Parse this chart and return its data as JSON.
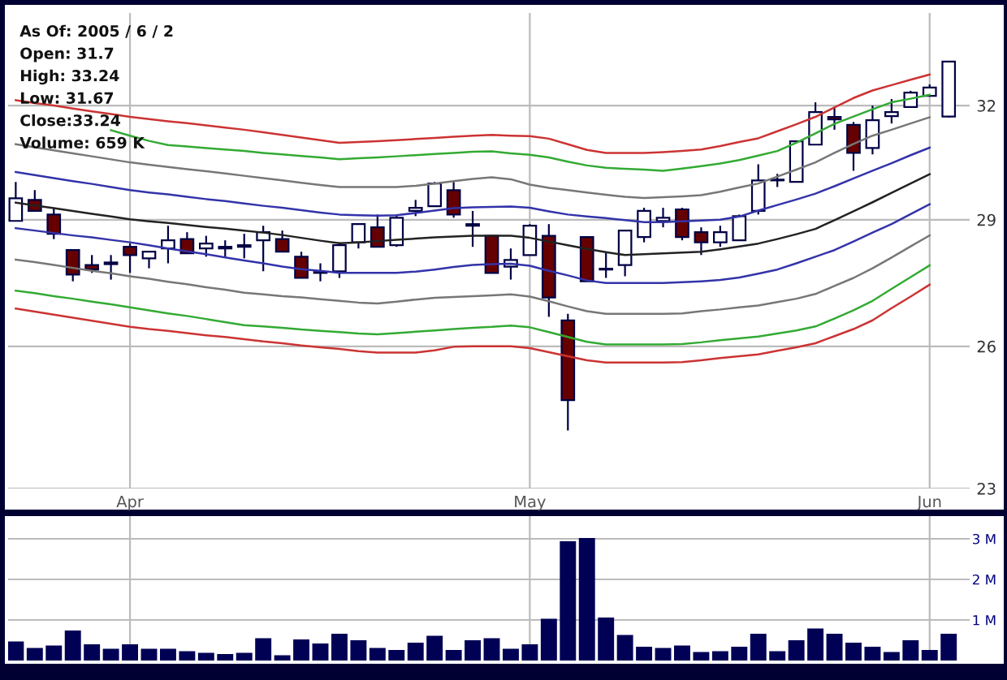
{
  "chart_data": [
    {
      "type": "candlestick",
      "log": "y",
      "grid": true,
      "annotations": [
        "As Of: 2005 / 6 / 2",
        "Open: 31.7",
        "High: 33.24",
        "Low: 31.67",
        "Close:33.24",
        "Volume: 659 K"
      ],
      "categories": [
        null,
        null,
        null,
        null,
        null,
        null,
        "Apr",
        null,
        null,
        null,
        null,
        null,
        null,
        null,
        null,
        null,
        null,
        null,
        null,
        null,
        null,
        null,
        null,
        null,
        null,
        null,
        null,
        "May",
        null,
        null,
        null,
        null,
        null,
        null,
        null,
        null,
        null,
        null,
        null,
        null,
        null,
        null,
        null,
        null,
        null,
        null,
        null,
        null,
        "Jun",
        null
      ],
      "ohlc": [
        [
          28.97,
          29.96,
          28.97,
          29.54
        ],
        [
          29.5,
          29.75,
          29.22,
          29.22
        ],
        [
          29.13,
          29.3,
          28.52,
          28.65
        ],
        [
          28.25,
          28.25,
          27.5,
          27.66
        ],
        [
          27.89,
          28.13,
          27.7,
          27.78
        ],
        [
          27.91,
          28.13,
          27.54,
          27.95
        ],
        [
          28.33,
          28.41,
          27.7,
          28.13
        ],
        [
          28.05,
          28.21,
          27.81,
          28.21
        ],
        [
          28.29,
          28.85,
          27.93,
          28.49
        ],
        [
          28.52,
          28.69,
          28.17,
          28.17
        ],
        [
          28.29,
          28.6,
          28.09,
          28.41
        ],
        [
          28.33,
          28.49,
          28.09,
          28.29
        ],
        [
          28.37,
          28.65,
          28.05,
          28.33
        ],
        [
          28.49,
          28.85,
          27.74,
          28.69
        ],
        [
          28.52,
          28.73,
          28.21,
          28.21
        ],
        [
          28.09,
          28.21,
          27.58,
          27.58
        ],
        [
          27.72,
          27.93,
          27.5,
          27.7
        ],
        [
          27.74,
          28.44,
          27.58,
          28.37
        ],
        [
          28.44,
          28.89,
          28.29,
          28.89
        ],
        [
          28.81,
          29.13,
          28.33,
          28.33
        ],
        [
          28.37,
          29.13,
          28.33,
          29.05
        ],
        [
          29.22,
          29.5,
          29.09,
          29.3
        ],
        [
          29.34,
          29.96,
          29.34,
          29.92
        ],
        [
          29.75,
          29.96,
          29.05,
          29.13
        ],
        [
          28.89,
          29.22,
          28.33,
          28.85
        ],
        [
          28.6,
          28.6,
          27.7,
          27.7
        ],
        [
          27.85,
          28.29,
          27.54,
          28.01
        ],
        [
          28.13,
          28.89,
          28.13,
          28.85
        ],
        [
          28.6,
          28.89,
          26.67,
          27.12
        ],
        [
          26.59,
          26.74,
          24.18,
          24.82
        ],
        [
          28.57,
          28.57,
          27.5,
          27.5
        ],
        [
          27.79,
          28.21,
          27.58,
          27.78
        ],
        [
          27.89,
          28.73,
          27.62,
          28.73
        ],
        [
          28.57,
          29.3,
          28.44,
          29.22
        ],
        [
          28.97,
          29.3,
          28.81,
          29.05
        ],
        [
          29.26,
          29.3,
          28.49,
          28.57
        ],
        [
          28.69,
          28.81,
          28.13,
          28.44
        ],
        [
          28.44,
          28.85,
          28.33,
          28.69
        ],
        [
          28.49,
          29.13,
          28.49,
          29.09
        ],
        [
          29.22,
          30.42,
          29.13,
          30.0
        ],
        [
          30.02,
          30.17,
          29.83,
          30.0
        ],
        [
          29.96,
          31.03,
          29.96,
          31.03
        ],
        [
          30.94,
          32.09,
          30.94,
          31.82
        ],
        [
          31.69,
          31.96,
          31.34,
          31.62
        ],
        [
          31.47,
          31.55,
          30.25,
          30.72
        ],
        [
          30.85,
          32.0,
          30.68,
          31.6
        ],
        [
          31.71,
          32.18,
          31.51,
          31.82
        ],
        [
          31.96,
          32.41,
          31.96,
          32.36
        ],
        [
          32.27,
          32.59,
          32.27,
          32.5
        ],
        [
          31.7,
          33.24,
          31.67,
          33.24
        ]
      ],
      "colors": [
        "#ffffff",
        "#660000",
        "#660000",
        "#660000",
        "#660000",
        "#ffffff",
        "#660000",
        "#ffffff",
        "#ffffff",
        "#660000",
        "#ffffff",
        "#660000",
        "#660000",
        "#ffffff",
        "#660000",
        "#660000",
        "#660000",
        "#ffffff",
        "#ffffff",
        "#660000",
        "#ffffff",
        "#ffffff",
        "#ffffff",
        "#660000",
        "#660000",
        "#660000",
        "#ffffff",
        "#ffffff",
        "#660000",
        "#660000",
        "#660000",
        "#660000",
        "#ffffff",
        "#ffffff",
        "#ffffff",
        "#660000",
        "#660000",
        "#ffffff",
        "#ffffff",
        "#ffffff",
        "#660000",
        "#ffffff",
        "#ffffff",
        "#660000",
        "#660000",
        "#ffffff",
        "#ffffff",
        "#ffffff",
        "#ffffff",
        "#ffffff"
      ],
      "series": [
        {
          "type": "line",
          "color": "#cc3333",
          "values": [
            32.15,
            32.07,
            32.0,
            31.92,
            31.84,
            31.77,
            31.69,
            31.63,
            31.57,
            31.52,
            31.46,
            31.4,
            31.34,
            31.27,
            31.2,
            31.13,
            31.06,
            30.99,
            31.01,
            31.03,
            31.06,
            31.09,
            31.12,
            31.15,
            31.18,
            31.2,
            31.18,
            31.17,
            31.1,
            30.95,
            30.8,
            30.72,
            30.72,
            30.72,
            30.74,
            30.77,
            30.81,
            30.9,
            31.01,
            31.11,
            31.3,
            31.49,
            31.69,
            31.95,
            32.21,
            32.42,
            32.57,
            32.72,
            32.87,
            null
          ]
        },
        {
          "type": "line",
          "color": "#33aa33",
          "values": [
            null,
            null,
            null,
            null,
            null,
            31.33,
            31.18,
            31.04,
            30.93,
            30.89,
            30.85,
            30.81,
            30.77,
            30.72,
            30.68,
            30.64,
            30.6,
            30.55,
            30.58,
            30.6,
            30.63,
            30.66,
            30.69,
            30.72,
            30.75,
            30.76,
            30.71,
            30.67,
            30.6,
            30.49,
            30.39,
            30.33,
            30.3,
            30.28,
            30.25,
            30.31,
            30.37,
            30.44,
            30.53,
            30.65,
            30.77,
            30.99,
            31.24,
            31.5,
            31.7,
            31.9,
            32.09,
            32.19,
            32.3,
            null
          ]
        },
        {
          "type": "line",
          "color": "#777777",
          "values": [
            30.95,
            30.87,
            30.79,
            30.71,
            30.63,
            30.55,
            30.47,
            30.41,
            30.35,
            30.29,
            30.24,
            30.18,
            30.12,
            30.06,
            30.0,
            29.94,
            29.88,
            29.83,
            29.83,
            29.83,
            29.83,
            29.86,
            29.92,
            29.98,
            30.04,
            30.08,
            30.03,
            29.89,
            29.81,
            29.75,
            29.69,
            29.63,
            29.58,
            29.55,
            29.57,
            29.59,
            29.62,
            29.71,
            29.82,
            29.92,
            30.1,
            30.28,
            30.47,
            30.72,
            30.96,
            31.18,
            31.34,
            31.51,
            31.68,
            null
          ]
        },
        {
          "type": "line",
          "color": "#3333aa",
          "values": [
            30.22,
            30.14,
            30.06,
            29.98,
            29.91,
            29.83,
            29.75,
            29.69,
            29.64,
            29.58,
            29.52,
            29.47,
            29.41,
            29.35,
            29.3,
            29.24,
            29.18,
            29.13,
            29.11,
            29.1,
            29.11,
            29.17,
            29.23,
            29.29,
            29.31,
            29.32,
            29.33,
            29.3,
            29.21,
            29.13,
            29.08,
            29.04,
            28.99,
            28.94,
            28.94,
            28.96,
            28.98,
            29.0,
            29.08,
            29.23,
            29.37,
            29.51,
            29.66,
            29.85,
            30.05,
            30.25,
            30.45,
            30.66,
            30.86,
            null
          ]
        },
        {
          "type": "line",
          "color": "#222222",
          "values": [
            29.43,
            29.36,
            29.29,
            29.22,
            29.15,
            29.08,
            29.01,
            28.96,
            28.92,
            28.87,
            28.82,
            28.78,
            28.73,
            28.68,
            28.62,
            28.55,
            28.48,
            28.42,
            28.44,
            28.47,
            28.5,
            28.53,
            28.56,
            28.58,
            28.6,
            28.6,
            28.6,
            28.55,
            28.46,
            28.37,
            28.28,
            28.2,
            28.13,
            28.15,
            28.17,
            28.19,
            28.21,
            28.27,
            28.34,
            28.41,
            28.52,
            28.64,
            28.77,
            28.99,
            29.21,
            29.44,
            29.68,
            29.92,
            30.16,
            null
          ]
        },
        {
          "type": "line",
          "color": "#3333aa",
          "values": [
            28.79,
            28.73,
            28.67,
            28.61,
            28.56,
            28.5,
            28.44,
            28.37,
            28.29,
            28.22,
            28.15,
            28.07,
            28.0,
            27.93,
            27.85,
            27.79,
            27.75,
            27.7,
            27.7,
            27.7,
            27.7,
            27.73,
            27.78,
            27.84,
            27.89,
            27.91,
            27.92,
            27.87,
            27.75,
            27.64,
            27.52,
            27.46,
            27.46,
            27.46,
            27.46,
            27.48,
            27.5,
            27.53,
            27.59,
            27.68,
            27.78,
            27.93,
            28.09,
            28.25,
            28.46,
            28.68,
            28.89,
            29.14,
            29.39,
            null
          ]
        },
        {
          "type": "line",
          "color": "#777777",
          "values": [
            28.02,
            27.96,
            27.89,
            27.82,
            27.75,
            27.69,
            27.62,
            27.56,
            27.49,
            27.43,
            27.36,
            27.3,
            27.23,
            27.19,
            27.15,
            27.12,
            27.08,
            27.04,
            27.0,
            26.98,
            27.02,
            27.07,
            27.11,
            27.13,
            27.15,
            27.17,
            27.19,
            27.14,
            27.03,
            26.91,
            26.8,
            26.74,
            26.74,
            26.74,
            26.74,
            26.75,
            26.8,
            26.84,
            26.89,
            26.93,
            27.01,
            27.09,
            27.2,
            27.39,
            27.58,
            27.81,
            28.07,
            28.34,
            28.61,
            null
          ]
        },
        {
          "type": "line",
          "color": "#33aa33",
          "values": [
            27.28,
            27.22,
            27.15,
            27.09,
            27.02,
            26.96,
            26.89,
            26.82,
            26.75,
            26.69,
            26.62,
            26.55,
            26.48,
            26.45,
            26.42,
            26.38,
            26.35,
            26.32,
            26.29,
            26.27,
            26.3,
            26.33,
            26.36,
            26.39,
            26.42,
            26.44,
            26.47,
            26.43,
            26.32,
            26.21,
            26.1,
            26.04,
            26.04,
            26.04,
            26.04,
            26.05,
            26.09,
            26.14,
            26.18,
            26.22,
            26.29,
            26.36,
            26.45,
            26.63,
            26.82,
            27.04,
            27.32,
            27.6,
            27.88,
            null
          ]
        },
        {
          "type": "line",
          "color": "#cc3333",
          "values": [
            26.86,
            26.79,
            26.72,
            26.65,
            26.58,
            26.51,
            26.44,
            26.39,
            26.35,
            26.3,
            26.25,
            26.21,
            26.16,
            26.11,
            26.07,
            26.02,
            25.98,
            25.94,
            25.89,
            25.86,
            25.86,
            25.86,
            25.91,
            25.99,
            26.0,
            26.0,
            26.0,
            25.96,
            25.87,
            25.78,
            25.69,
            25.64,
            25.64,
            25.64,
            25.64,
            25.65,
            25.69,
            25.74,
            25.78,
            25.82,
            25.9,
            25.98,
            26.07,
            26.23,
            26.39,
            26.59,
            26.87,
            27.14,
            27.42,
            null
          ]
        }
      ],
      "ylim": [
        23,
        34.66
      ],
      "yticks": [
        23,
        26,
        29,
        32
      ]
    },
    {
      "type": "bar",
      "color": "#000055",
      "grid": true,
      "tick_labels": "y",
      "categories": [
        null,
        null,
        null,
        null,
        null,
        null,
        null,
        null,
        null,
        null,
        null,
        null,
        null,
        null,
        null,
        null,
        null,
        null,
        null,
        null,
        null,
        null,
        null,
        null,
        null,
        null,
        null,
        null,
        null,
        null,
        null,
        null,
        null,
        null,
        null,
        null,
        null,
        null,
        null,
        null,
        null,
        null,
        null,
        null,
        null,
        null,
        null,
        null,
        null,
        null
      ],
      "values": [
        0.47,
        0.31,
        0.37,
        0.74,
        0.4,
        0.29,
        0.4,
        0.29,
        0.29,
        0.23,
        0.19,
        0.16,
        0.19,
        0.55,
        0.13,
        0.52,
        0.42,
        0.66,
        0.5,
        0.31,
        0.26,
        0.44,
        0.61,
        0.26,
        0.5,
        0.55,
        0.29,
        0.4,
        1.03,
        2.94,
        3.02,
        1.06,
        0.63,
        0.34,
        0.31,
        0.37,
        0.21,
        0.23,
        0.34,
        0.66,
        0.23,
        0.5,
        0.79,
        0.66,
        0.44,
        0.34,
        0.21,
        0.5,
        0.26,
        0.66
      ],
      "ylim": [
        0,
        3.56
      ],
      "yticks": [
        {
          "value": 1,
          "label": "1 M"
        },
        {
          "value": 2,
          "label": "2 M"
        },
        {
          "value": 3,
          "label": "3 M"
        }
      ]
    }
  ]
}
